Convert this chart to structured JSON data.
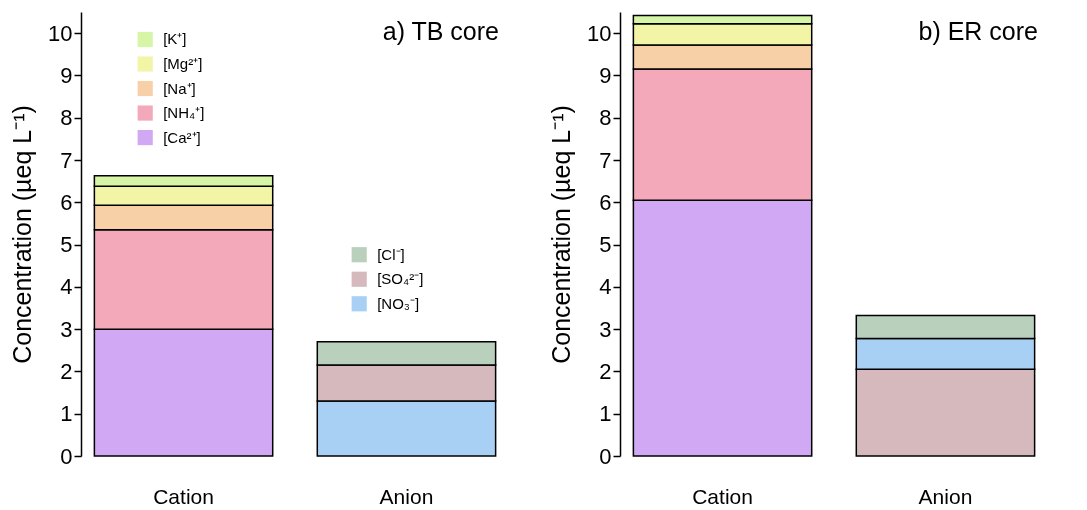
{
  "chart_data": [
    {
      "type": "bar",
      "title": "a) TB core",
      "ylabel": "Concentration (µeq L⁻¹)",
      "categories": [
        "Cation",
        "Anion"
      ],
      "stacked": true,
      "ylim": [
        0,
        10.5
      ],
      "yticks": [
        0,
        1,
        2,
        3,
        4,
        5,
        6,
        7,
        8,
        9,
        10
      ],
      "grid": false,
      "legend": "top",
      "series": [
        {
          "name": "[Ca²⁺]",
          "color": "#d0a8f4",
          "values": [
            3.0,
            null
          ]
        },
        {
          "name": "[NH₄⁺]",
          "color": "#f4a9bb",
          "values": [
            2.35,
            null
          ]
        },
        {
          "name": "[Na⁺]",
          "color": "#f7d0a8",
          "values": [
            0.58,
            null
          ]
        },
        {
          "name": "[Mg²⁺]",
          "color": "#f2f5a5",
          "values": [
            0.45,
            null
          ]
        },
        {
          "name": "[K⁺]",
          "color": "#d6f5a6",
          "values": [
            0.25,
            null
          ]
        },
        {
          "name": "[NO₃⁻]",
          "color": "#a8d0f4",
          "values": [
            null,
            1.3
          ]
        },
        {
          "name": "[SO₄²⁻]",
          "color": "#d5b9bd",
          "values": [
            null,
            0.85
          ]
        },
        {
          "name": "[Cl⁻]",
          "color": "#b9d0bd",
          "values": [
            null,
            0.55
          ]
        }
      ]
    },
    {
      "type": "bar",
      "title": "b) ER core",
      "ylabel": "Concentration (µeq L⁻¹)",
      "categories": [
        "Cation",
        "Anion"
      ],
      "stacked": true,
      "ylim": [
        0,
        10.5
      ],
      "yticks": [
        0,
        1,
        2,
        3,
        4,
        5,
        6,
        7,
        8,
        9,
        10
      ],
      "grid": false,
      "series": [
        {
          "color": "#d0a8f4",
          "values": [
            6.05,
            null
          ]
        },
        {
          "color": "#f4a9bb",
          "values": [
            3.1,
            null
          ]
        },
        {
          "color": "#f7d0a8",
          "values": [
            0.57,
            null
          ]
        },
        {
          "color": "#f2f5a5",
          "values": [
            0.5,
            null
          ]
        },
        {
          "color": "#d6f5a6",
          "values": [
            0.2,
            null
          ]
        },
        {
          "color": "#d5b9bd",
          "values": [
            null,
            2.05
          ]
        },
        {
          "color": "#a8d0f4",
          "values": [
            null,
            0.73
          ]
        },
        {
          "color": "#b9d0bd",
          "values": [
            null,
            0.54
          ]
        }
      ]
    }
  ]
}
